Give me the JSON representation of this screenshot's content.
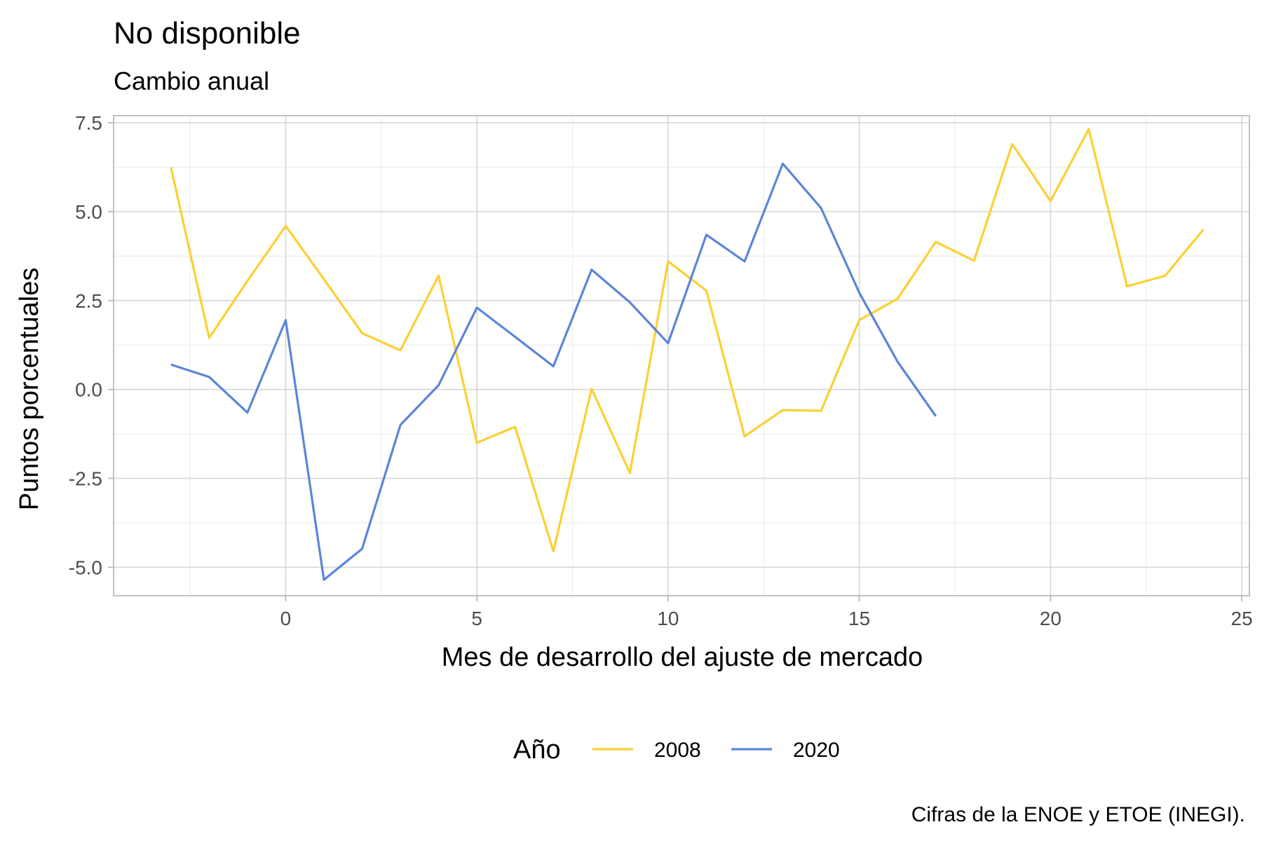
{
  "chart_data": {
    "type": "line",
    "title": "No disponible",
    "subtitle": "Cambio anual",
    "xlabel": "Mes de desarrollo del ajuste de mercado",
    "ylabel": "Puntos porcentuales",
    "caption": "Cifras de la ENOE y ETOE (INEGI).",
    "xlim": [
      -4.5,
      25.2
    ],
    "ylim": [
      -5.8,
      7.7
    ],
    "x_ticks": [
      0,
      5,
      10,
      15,
      20,
      25
    ],
    "x_tick_labels": [
      "0",
      "5",
      "10",
      "15",
      "20",
      "25"
    ],
    "y_ticks": [
      -5.0,
      -2.5,
      0.0,
      2.5,
      5.0,
      7.5
    ],
    "y_tick_labels": [
      "-5.0",
      "-2.5",
      "0.0",
      "2.5",
      "5.0",
      "7.5"
    ],
    "grid": true,
    "legend": {
      "title": "Año",
      "position": "bottom"
    },
    "series": [
      {
        "name": "2008",
        "color": "#FBD033",
        "x": [
          -3,
          -2,
          -1,
          0,
          1,
          2,
          3,
          4,
          5,
          6,
          7,
          8,
          9,
          10,
          11,
          12,
          13,
          14,
          15,
          16,
          17,
          18,
          19,
          20,
          21,
          22,
          23,
          24
        ],
        "y": [
          6.25,
          1.45,
          3.05,
          4.6,
          3.1,
          1.58,
          1.1,
          3.2,
          -1.5,
          -1.05,
          -4.55,
          0.02,
          -2.35,
          3.6,
          2.78,
          -1.32,
          -0.58,
          -0.6,
          1.95,
          2.55,
          4.15,
          3.62,
          6.9,
          5.3,
          7.32,
          2.9,
          3.2,
          4.5
        ]
      },
      {
        "name": "2020",
        "color": "#5B85D9",
        "x": [
          -3,
          -2,
          -1,
          0,
          1,
          2,
          3,
          4,
          5,
          6,
          7,
          8,
          9,
          10,
          11,
          12,
          13,
          14,
          15,
          16,
          17
        ],
        "y": [
          0.7,
          0.35,
          -0.65,
          1.95,
          -5.35,
          -4.48,
          -1.0,
          0.12,
          2.3,
          1.48,
          0.65,
          3.37,
          2.45,
          1.3,
          4.35,
          3.6,
          6.35,
          5.1,
          2.72,
          0.78,
          -0.75
        ]
      }
    ]
  }
}
